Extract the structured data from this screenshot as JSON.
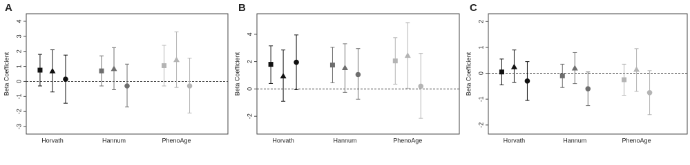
{
  "chart_data": [
    {
      "type": "dot",
      "label": "A",
      "ylabel": "Beta Coefficient",
      "categories": [
        "Horvath",
        "Hannum",
        "PhenoAge"
      ],
      "category_colors": [
        "#111111",
        "#6e6e6e",
        "#b4b4b4"
      ],
      "series": [
        {
          "marker": "square",
          "values": [
            0.75,
            0.7,
            1.05
          ],
          "lower": [
            -0.3,
            -0.3,
            -0.3
          ],
          "upper": [
            1.8,
            1.7,
            2.4
          ]
        },
        {
          "marker": "triangle",
          "values": [
            0.7,
            0.85,
            1.45
          ],
          "lower": [
            -0.7,
            -0.55,
            -0.4
          ],
          "upper": [
            2.1,
            2.25,
            3.3
          ]
        },
        {
          "marker": "circle",
          "values": [
            0.15,
            -0.3,
            -0.3
          ],
          "lower": [
            -1.45,
            -1.7,
            -2.1
          ],
          "upper": [
            1.75,
            1.15,
            1.55
          ]
        }
      ],
      "ylim": [
        -3.5,
        4.5
      ],
      "yticks": [
        -3,
        -2,
        -1,
        0,
        1,
        2,
        3,
        4
      ],
      "hline": 0
    },
    {
      "type": "dot",
      "label": "B",
      "ylabel": "Beta Coefficient",
      "categories": [
        "Horvath",
        "Hannum",
        "PhenoAge"
      ],
      "category_colors": [
        "#111111",
        "#6e6e6e",
        "#b4b4b4"
      ],
      "series": [
        {
          "marker": "square",
          "values": [
            1.8,
            1.75,
            2.05
          ],
          "lower": [
            0.4,
            0.45,
            0.35
          ],
          "upper": [
            3.15,
            3.05,
            3.75
          ]
        },
        {
          "marker": "triangle",
          "values": [
            0.95,
            1.55,
            2.45
          ],
          "lower": [
            -0.9,
            -0.25,
            0.05
          ],
          "upper": [
            2.85,
            3.3,
            4.85
          ]
        },
        {
          "marker": "circle",
          "values": [
            1.95,
            1.05,
            0.2
          ],
          "lower": [
            -0.05,
            -0.75,
            -2.15
          ],
          "upper": [
            3.95,
            2.95,
            2.6
          ]
        }
      ],
      "ylim": [
        -3.3,
        5.5
      ],
      "yticks": [
        -2,
        0,
        2,
        4
      ],
      "hline": 0
    },
    {
      "type": "dot",
      "label": "C",
      "ylabel": "Beta Coefficient",
      "categories": [
        "Horvath",
        "Hannum",
        "PhenoAge"
      ],
      "category_colors": [
        "#111111",
        "#6e6e6e",
        "#b4b4b4"
      ],
      "series": [
        {
          "marker": "square",
          "values": [
            0.05,
            -0.1,
            -0.25
          ],
          "lower": [
            -0.45,
            -0.55,
            -0.85
          ],
          "upper": [
            0.55,
            0.35,
            0.35
          ]
        },
        {
          "marker": "triangle",
          "values": [
            0.25,
            0.2,
            0.15
          ],
          "lower": [
            -0.35,
            -0.4,
            -0.7
          ],
          "upper": [
            0.9,
            0.8,
            0.95
          ]
        },
        {
          "marker": "circle",
          "values": [
            -0.3,
            -0.6,
            -0.75
          ],
          "lower": [
            -1.05,
            -1.25,
            -1.6
          ],
          "upper": [
            0.45,
            0.05,
            0.1
          ]
        }
      ],
      "ylim": [
        -2.35,
        2.3
      ],
      "yticks": [
        -2,
        -1,
        0,
        1,
        2
      ],
      "hline": 0
    }
  ]
}
